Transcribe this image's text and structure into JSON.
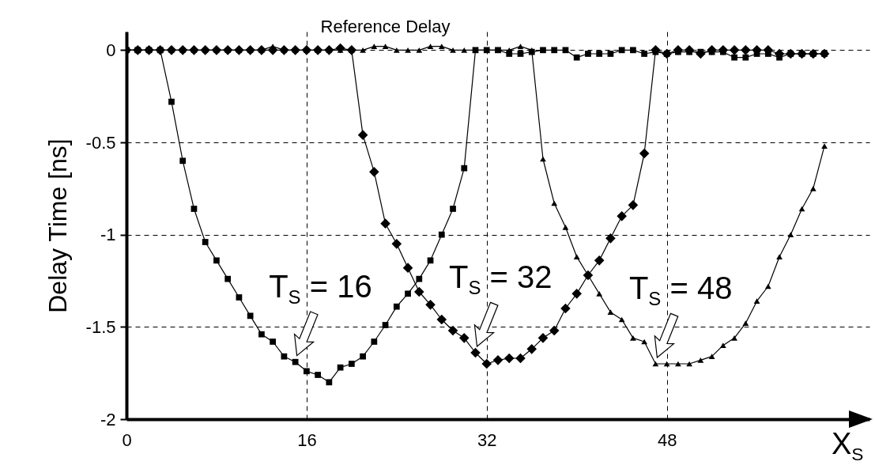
{
  "chart_data": {
    "type": "line",
    "xlabel": "X$_{S}$",
    "ylabel": "Delay Time [ns]",
    "x": [
      0,
      1,
      2,
      3,
      4,
      5,
      6,
      7,
      8,
      9,
      10,
      11,
      12,
      13,
      14,
      15,
      16,
      17,
      18,
      19,
      20,
      21,
      22,
      23,
      24,
      25,
      26,
      27,
      28,
      29,
      30,
      31,
      32,
      33,
      34,
      35,
      36,
      37,
      38,
      39,
      40,
      41,
      42,
      43,
      44,
      45,
      46,
      47,
      48,
      49,
      50,
      51,
      52,
      53,
      54,
      55,
      56,
      57,
      58,
      59,
      60,
      61,
      62
    ],
    "series": [
      {
        "color": "#000000",
        "marker": "square",
        "values": [
          0,
          0,
          0,
          0,
          -0.28,
          -0.6,
          -0.86,
          -1.04,
          -1.14,
          -1.24,
          -1.34,
          -1.44,
          -1.54,
          -1.58,
          -1.66,
          -1.69,
          -1.74,
          -1.76,
          -1.8,
          -1.72,
          -1.7,
          -1.66,
          -1.58,
          -1.49,
          -1.39,
          -1.32,
          -1.24,
          -1.14,
          -1.0,
          -0.86,
          -0.64,
          0,
          0,
          0,
          -0.02,
          -0.02,
          -0.01,
          0,
          0,
          0,
          -0.04,
          -0.02,
          -0.02,
          -0.02,
          0,
          0,
          -0.02,
          -0.01,
          -0.02,
          -0.01,
          -0.01,
          -0.01,
          -0.01,
          -0.01,
          -0.04,
          -0.04,
          -0.02,
          -0.02,
          -0.04,
          -0.02,
          -0.02,
          -0.02,
          -0.02
        ]
      },
      {
        "color": "#000000",
        "marker": "diamond",
        "values": [
          0,
          0,
          0,
          0,
          0,
          0,
          0,
          0,
          0,
          0,
          0,
          0,
          0,
          0,
          0,
          0,
          0,
          0,
          0,
          0.01,
          0,
          -0.46,
          -0.66,
          -0.94,
          -1.05,
          -1.18,
          -1.31,
          -1.38,
          -1.46,
          -1.52,
          -1.56,
          -1.64,
          -1.7,
          -1.68,
          -1.67,
          -1.67,
          -1.62,
          -1.56,
          -1.52,
          -1.4,
          -1.32,
          -1.22,
          -1.14,
          -1.02,
          -0.9,
          -0.84,
          -0.56,
          0,
          -0.02,
          0,
          0,
          -0.02,
          0,
          0,
          0,
          0,
          0,
          0,
          -0.02,
          -0.02,
          -0.02,
          -0.02,
          -0.02
        ]
      },
      {
        "color": "#000000",
        "marker": "triangle",
        "values": [
          0,
          0,
          0,
          0,
          0,
          0,
          0,
          0,
          0,
          0,
          0,
          0,
          0,
          0.02,
          0,
          0,
          0,
          0,
          0,
          0,
          0,
          0,
          0.02,
          0.02,
          0,
          0,
          0,
          0.02,
          0.02,
          0,
          0,
          0,
          0,
          0,
          0,
          0.02,
          0,
          -0.59,
          -0.83,
          -0.96,
          -1.12,
          -1.22,
          -1.32,
          -1.42,
          -1.46,
          -1.56,
          -1.58,
          -1.7,
          -1.7,
          -1.7,
          -1.7,
          -1.68,
          -1.66,
          -1.6,
          -1.56,
          -1.48,
          -1.36,
          -1.28,
          -1.12,
          -1.0,
          -0.86,
          -0.75,
          -0.52
        ]
      }
    ],
    "xlim": [
      0,
      66
    ],
    "xticks": [
      0,
      16,
      32,
      48
    ],
    "ylim": [
      -2,
      0.1
    ],
    "yticks": [
      -2,
      -1.5,
      -1,
      -0.5,
      0
    ],
    "grid": true,
    "line_style": "solid",
    "annotations": [
      {
        "text": "Reference Delay",
        "x": 23,
        "y": 0
      },
      {
        "text": "T$_{S}$ = 16",
        "x": 15,
        "y": -1.69
      },
      {
        "text": "T$_{S}$ = 32",
        "x": 31,
        "y": -1.64
      },
      {
        "text": "T$_{S}$ = 48",
        "x": 47,
        "y": -1.7
      }
    ]
  }
}
